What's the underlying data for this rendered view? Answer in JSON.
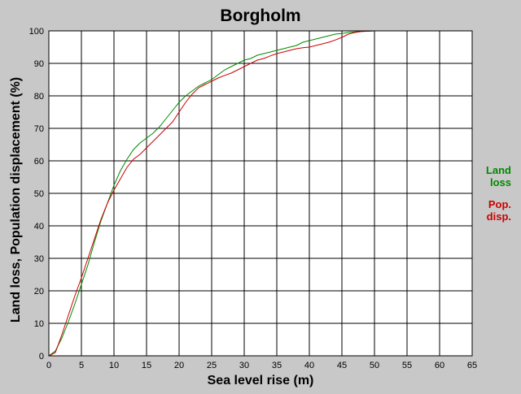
{
  "chart_data": {
    "type": "line",
    "title": "Borgholm",
    "xlabel": "Sea level rise (m)",
    "ylabel": "Land loss, Population displacement (%)",
    "xlim": [
      0,
      65
    ],
    "ylim": [
      0,
      100
    ],
    "xticks": [
      0,
      5,
      10,
      15,
      20,
      25,
      30,
      35,
      40,
      45,
      50,
      55,
      60,
      65
    ],
    "yticks": [
      0,
      10,
      20,
      30,
      40,
      50,
      60,
      70,
      80,
      90,
      100
    ],
    "grid": true,
    "legend_position": "right",
    "series": [
      {
        "name": "Land loss",
        "legend_lines": [
          "Land",
          "loss"
        ],
        "color": "#008800",
        "x": [
          0,
          1,
          2,
          3,
          4,
          5,
          6,
          7,
          8,
          9,
          10,
          11,
          12,
          13,
          14,
          15,
          16,
          17,
          18,
          19,
          20,
          21,
          22,
          23,
          24,
          25,
          26,
          27,
          28,
          29,
          30,
          31,
          32,
          33,
          34,
          35,
          36,
          37,
          38,
          39,
          40,
          41,
          42,
          43,
          44,
          45,
          46,
          47,
          48,
          49,
          50,
          55,
          60,
          65
        ],
        "y": [
          0,
          1.5,
          5.5,
          10.5,
          16,
          22,
          28,
          35,
          41.5,
          47,
          52.5,
          57,
          60.5,
          63.5,
          65.5,
          67,
          68.5,
          70.5,
          73,
          75.5,
          78,
          80,
          81.5,
          83,
          84,
          85,
          86.5,
          88,
          89,
          90,
          91,
          91.5,
          92.5,
          93,
          93.5,
          94,
          94.5,
          95,
          95.5,
          96.5,
          97,
          97.5,
          98,
          98.5,
          99,
          99.2,
          99.5,
          99.7,
          99.8,
          99.9,
          100,
          100,
          100,
          100
        ]
      },
      {
        "name": "Pop. disp.",
        "legend_lines": [
          "Pop.",
          "disp."
        ],
        "color": "#cc0000",
        "x": [
          0,
          1,
          2,
          3,
          4,
          5,
          6,
          7,
          8,
          9,
          10,
          11,
          12,
          13,
          14,
          15,
          16,
          17,
          18,
          19,
          20,
          21,
          22,
          23,
          24,
          25,
          26,
          27,
          28,
          29,
          30,
          31,
          32,
          33,
          34,
          35,
          36,
          37,
          38,
          39,
          40,
          41,
          42,
          43,
          44,
          45,
          46,
          47,
          48,
          49,
          50,
          55,
          60,
          65
        ],
        "y": [
          0,
          1,
          6.5,
          12.5,
          18.5,
          24,
          30,
          36,
          42,
          47,
          51,
          54.5,
          58,
          60.5,
          62,
          64,
          66,
          68,
          70,
          72,
          75,
          78,
          80.5,
          82.5,
          83.5,
          84.5,
          85.5,
          86.3,
          87,
          88,
          89,
          90,
          91,
          91.5,
          92.3,
          93,
          93.5,
          94,
          94.5,
          94.8,
          95,
          95.5,
          96,
          96.5,
          97.2,
          98,
          99,
          99.5,
          99.8,
          99.9,
          100,
          100,
          100,
          100
        ]
      }
    ]
  }
}
